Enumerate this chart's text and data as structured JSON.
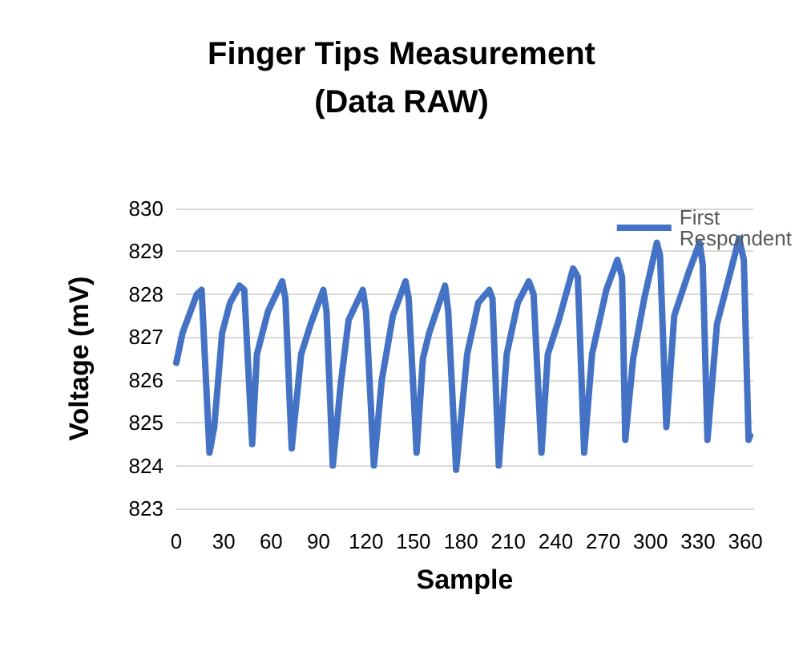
{
  "chart_data": {
    "type": "line",
    "title": "Finger Tips Measurement\n(Data RAW)",
    "xlabel": "Sample",
    "ylabel": "Voltage (mV)",
    "xlim": [
      0,
      365
    ],
    "xticks": [
      0,
      30,
      60,
      90,
      120,
      150,
      180,
      210,
      240,
      270,
      300,
      330,
      360
    ],
    "ylim": [
      823,
      830
    ],
    "yticks": [
      823,
      824,
      825,
      826,
      827,
      828,
      829,
      830
    ],
    "grid": "y",
    "legend": "top right",
    "marker": "none",
    "line_style": "solid",
    "series": [
      {
        "name": "First Respondent",
        "color": "#4472c4",
        "x": [
          0,
          4,
          13,
          16,
          21,
          24,
          29,
          34,
          40,
          43,
          48,
          51,
          58,
          67,
          69,
          73,
          79,
          85,
          93,
          95,
          99,
          104,
          109,
          118,
          120,
          125,
          130,
          137,
          145,
          147,
          152,
          156,
          160,
          170,
          172,
          177,
          184,
          191,
          198,
          200,
          204,
          209,
          216,
          223,
          226,
          231,
          235,
          242,
          251,
          254,
          258,
          263,
          272,
          279,
          282,
          284,
          289,
          296,
          304,
          306,
          310,
          315,
          324,
          331,
          333,
          336,
          342,
          349,
          356,
          359,
          362,
          363
        ],
        "values": [
          826.4,
          827.1,
          828.0,
          828.1,
          824.3,
          824.9,
          827.1,
          827.8,
          828.2,
          828.1,
          824.5,
          826.6,
          827.6,
          828.3,
          827.9,
          824.4,
          826.6,
          827.3,
          828.1,
          827.6,
          824.0,
          825.9,
          827.4,
          828.1,
          827.6,
          824.0,
          826.0,
          827.5,
          828.3,
          827.9,
          824.3,
          826.5,
          827.1,
          828.2,
          827.6,
          823.9,
          826.6,
          827.8,
          828.1,
          827.9,
          824.0,
          826.6,
          827.8,
          828.3,
          828.0,
          824.3,
          826.6,
          827.4,
          828.6,
          828.4,
          824.3,
          826.6,
          828.1,
          828.8,
          828.4,
          824.6,
          826.5,
          827.9,
          829.2,
          828.9,
          824.9,
          827.5,
          828.5,
          829.2,
          828.7,
          824.6,
          827.3,
          828.3,
          829.3,
          828.8,
          824.6,
          824.7
        ]
      }
    ]
  }
}
